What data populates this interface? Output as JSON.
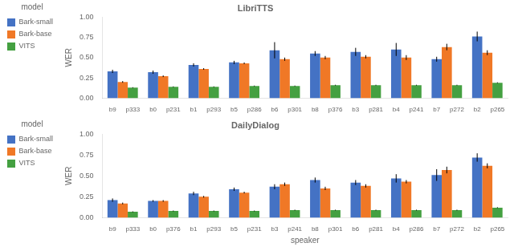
{
  "chart_data": [
    {
      "type": "bar",
      "title": "LibriTTS",
      "ylabel": "WER",
      "categories": [
        [
          "b9",
          "p333"
        ],
        [
          "b0",
          "p231"
        ],
        [
          "b1",
          "p293"
        ],
        [
          "b5",
          "p286"
        ],
        [
          "b6",
          "p301"
        ],
        [
          "b8",
          "p376"
        ],
        [
          "b3",
          "p281"
        ],
        [
          "b4",
          "p241"
        ],
        [
          "b7",
          "p272"
        ],
        [
          "b2",
          "p265"
        ]
      ],
      "series": [
        {
          "name": "Bark-small",
          "color": "#4472c4",
          "values": [
            0.33,
            0.32,
            0.41,
            0.44,
            0.59,
            0.55,
            0.57,
            0.6,
            0.48,
            0.76
          ],
          "errors": [
            0.02,
            0.02,
            0.02,
            0.02,
            0.1,
            0.03,
            0.05,
            0.08,
            0.03,
            0.06
          ]
        },
        {
          "name": "Bark-base",
          "color": "#f07826",
          "values": [
            0.2,
            0.27,
            0.36,
            0.43,
            0.48,
            0.5,
            0.51,
            0.5,
            0.63,
            0.56
          ],
          "errors": [
            0.01,
            0.01,
            0.01,
            0.01,
            0.02,
            0.02,
            0.02,
            0.03,
            0.04,
            0.03
          ]
        },
        {
          "name": "VITS",
          "color": "#44a041",
          "values": [
            0.13,
            0.14,
            0.14,
            0.15,
            0.15,
            0.16,
            0.16,
            0.16,
            0.16,
            0.19
          ],
          "errors": [
            0.005,
            0.005,
            0.005,
            0.005,
            0.005,
            0.005,
            0.005,
            0.005,
            0.005,
            0.005
          ]
        }
      ],
      "ylim": [
        0,
        1
      ],
      "yticks": [
        {
          "value": 0,
          "label": "0.00"
        },
        0.25,
        {
          "value": 0.5,
          "label": "0.50"
        },
        0.75,
        {
          "value": 1,
          "label": "1.00"
        }
      ],
      "legend": "upper left",
      "legend_title": "model",
      "grid": false
    },
    {
      "type": "bar",
      "title": "DailyDialog",
      "ylabel": "WER",
      "xlabel": "speaker",
      "categories": [
        [
          "b9",
          "p333"
        ],
        [
          "b0",
          "p376"
        ],
        [
          "b1",
          "p293"
        ],
        [
          "b5",
          "p231"
        ],
        [
          "b3",
          "p241"
        ],
        [
          "b8",
          "p301"
        ],
        [
          "b6",
          "p281"
        ],
        [
          "b4",
          "p286"
        ],
        [
          "b7",
          "p272"
        ],
        [
          "b2",
          "p265"
        ]
      ],
      "series": [
        {
          "name": "Bark-small",
          "color": "#4472c4",
          "values": [
            0.21,
            0.2,
            0.29,
            0.34,
            0.37,
            0.45,
            0.42,
            0.47,
            0.51,
            0.72
          ],
          "errors": [
            0.02,
            0.01,
            0.02,
            0.02,
            0.03,
            0.03,
            0.03,
            0.05,
            0.07,
            0.05
          ]
        },
        {
          "name": "Bark-base",
          "color": "#f07826",
          "values": [
            0.17,
            0.2,
            0.25,
            0.3,
            0.4,
            0.35,
            0.38,
            0.43,
            0.57,
            0.62
          ],
          "errors": [
            0.01,
            0.01,
            0.01,
            0.01,
            0.02,
            0.02,
            0.02,
            0.02,
            0.04,
            0.03
          ]
        },
        {
          "name": "VITS",
          "color": "#44a041",
          "values": [
            0.07,
            0.08,
            0.08,
            0.08,
            0.09,
            0.09,
            0.09,
            0.09,
            0.09,
            0.12
          ],
          "errors": [
            0.005,
            0.005,
            0.005,
            0.005,
            0.005,
            0.005,
            0.005,
            0.005,
            0.005,
            0.005
          ]
        }
      ],
      "ylim": [
        0,
        1
      ],
      "yticks": [
        {
          "value": 0,
          "label": "0.00"
        },
        0.25,
        {
          "value": 0.5,
          "label": "0.50"
        },
        0.75,
        {
          "value": 1,
          "label": "1.00"
        }
      ],
      "legend": "upper left",
      "legend_title": "model",
      "grid": false
    }
  ]
}
